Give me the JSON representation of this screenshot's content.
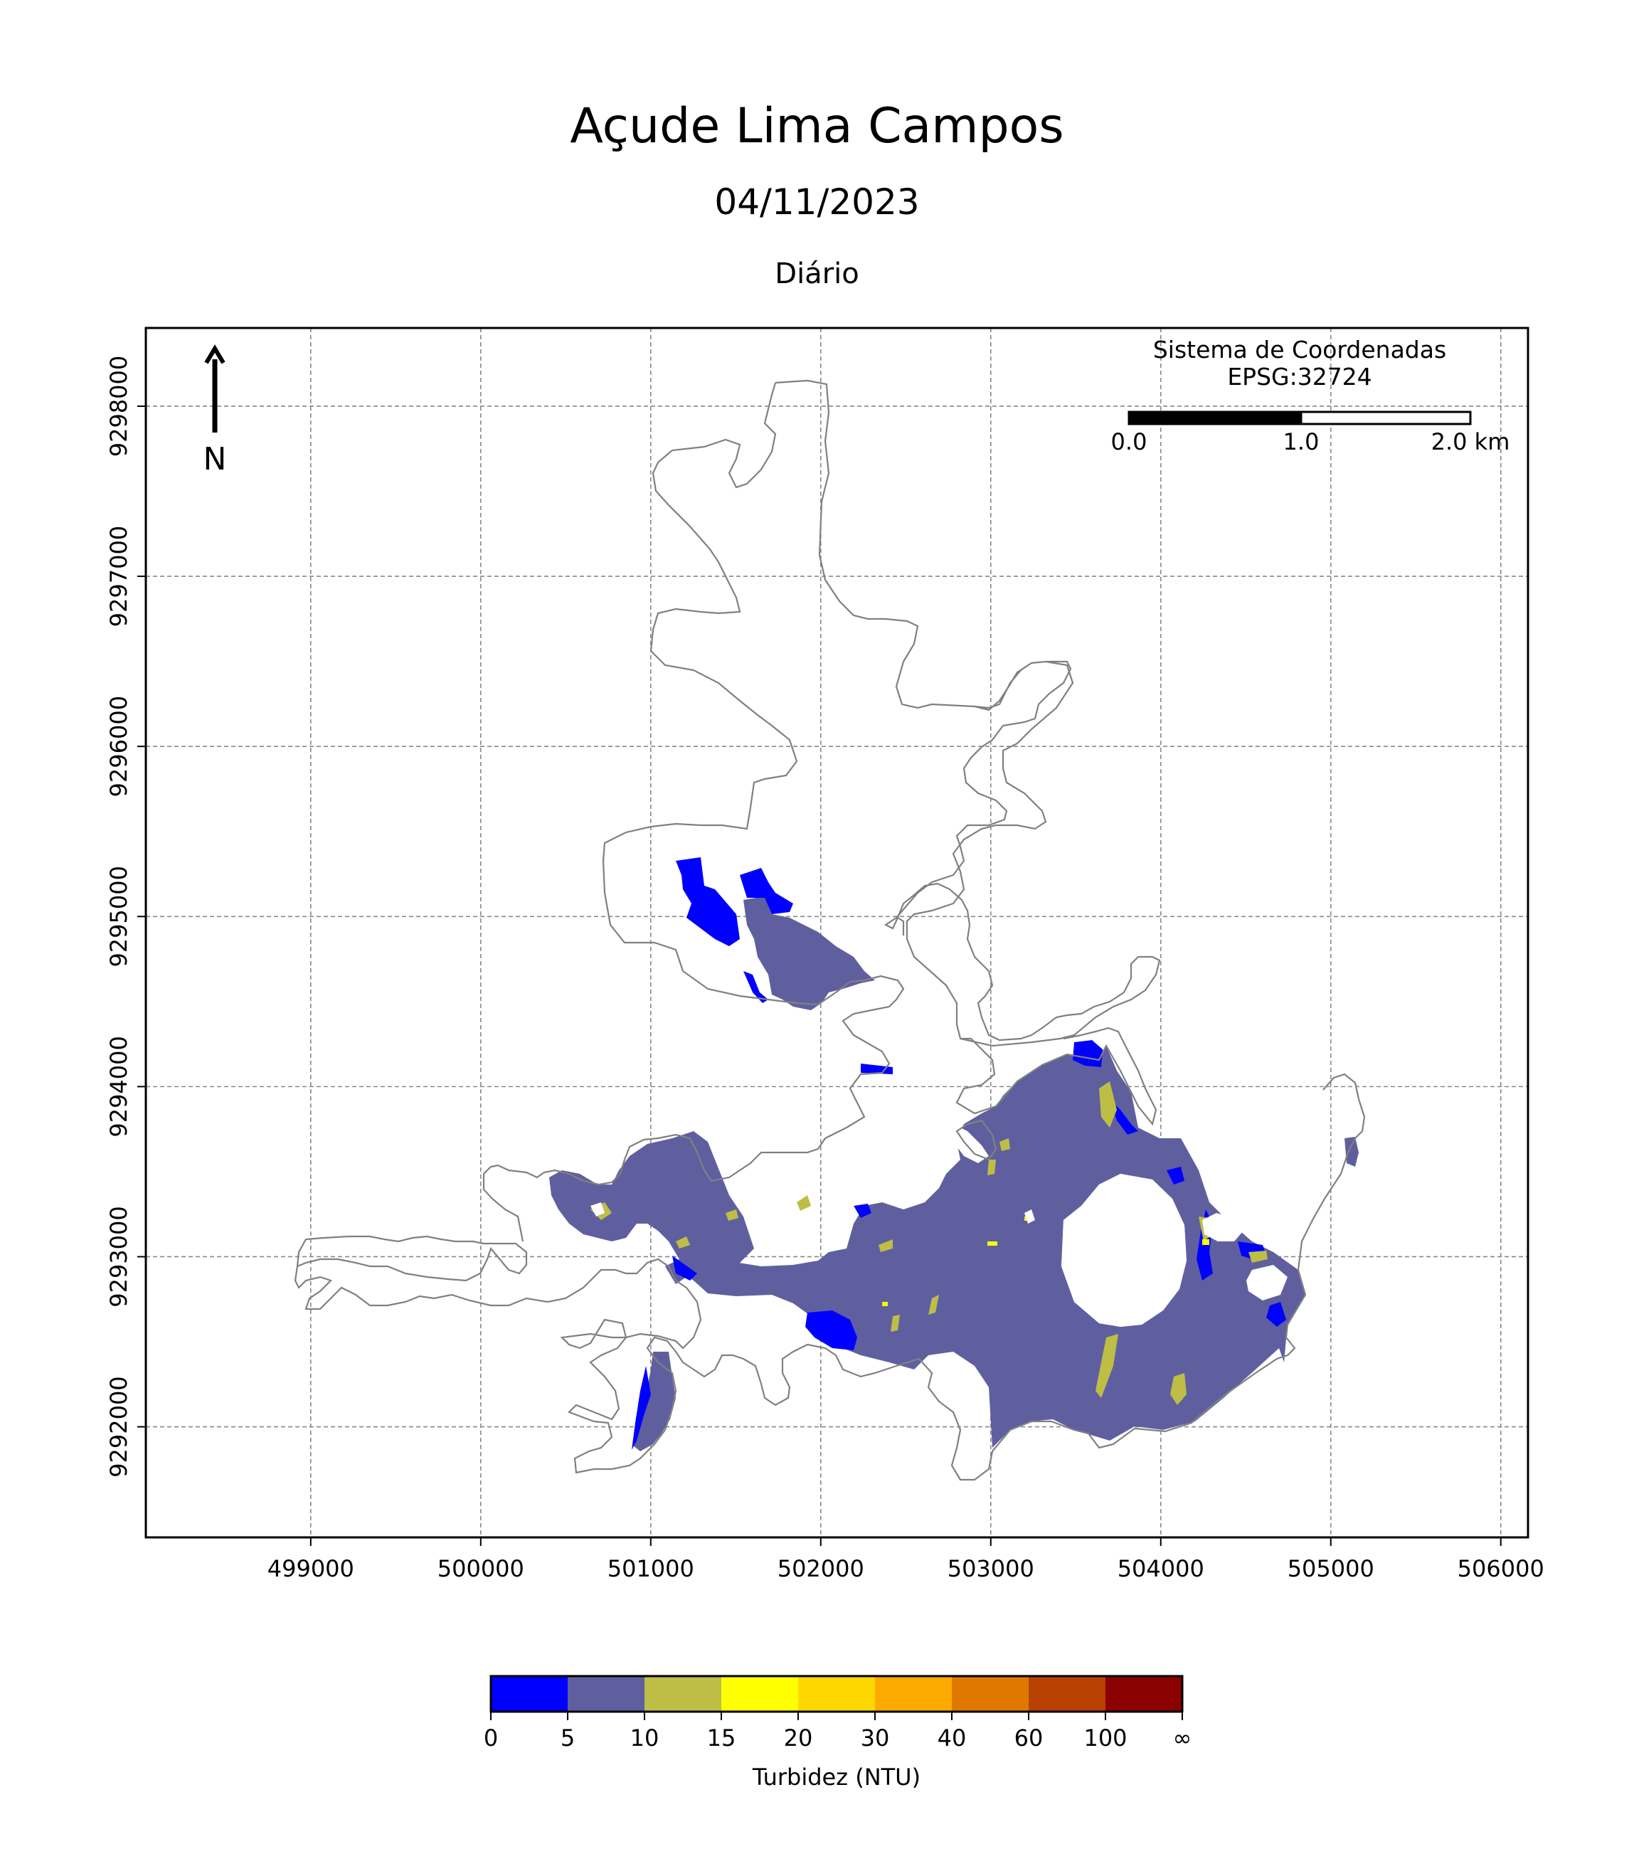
{
  "title": "Açude Lima Campos",
  "date": "04/11/2023",
  "period": "Diário",
  "crs": {
    "line1": "Sistema de Coordenadas",
    "line2": "EPSG:32724"
  },
  "north_label": "N",
  "scale_bar": {
    "labels": [
      "0.0",
      "1.0",
      "2.0 km"
    ],
    "fill_colors": [
      "#000000",
      "#ffffff"
    ]
  },
  "axes": {
    "x_ticks": [
      499000,
      500000,
      501000,
      502000,
      503000,
      504000,
      505000,
      506000
    ],
    "y_ticks": [
      9292000,
      9293000,
      9294000,
      9295000,
      9296000,
      9297000,
      9298000
    ],
    "xlim": [
      498030,
      506160
    ],
    "ylim": [
      9291350,
      9298460
    ],
    "grid": true
  },
  "colorbar": {
    "label": "Turbidez (NTU)",
    "tick_labels": [
      "0",
      "5",
      "10",
      "15",
      "20",
      "30",
      "40",
      "60",
      "100",
      "∞"
    ],
    "colors": [
      "#0000ff",
      "#5f5fa0",
      "#bebe46",
      "#ffff00",
      "#ffd700",
      "#ffaa00",
      "#e07800",
      "#b84000",
      "#8b0000"
    ]
  },
  "colors": {
    "outline": "#808080",
    "low_turbidity": "#0000ff",
    "moderate_turbidity": "#5f5fa0",
    "high_turbidity": "#bebe46",
    "very_high": "#ffff00"
  }
}
